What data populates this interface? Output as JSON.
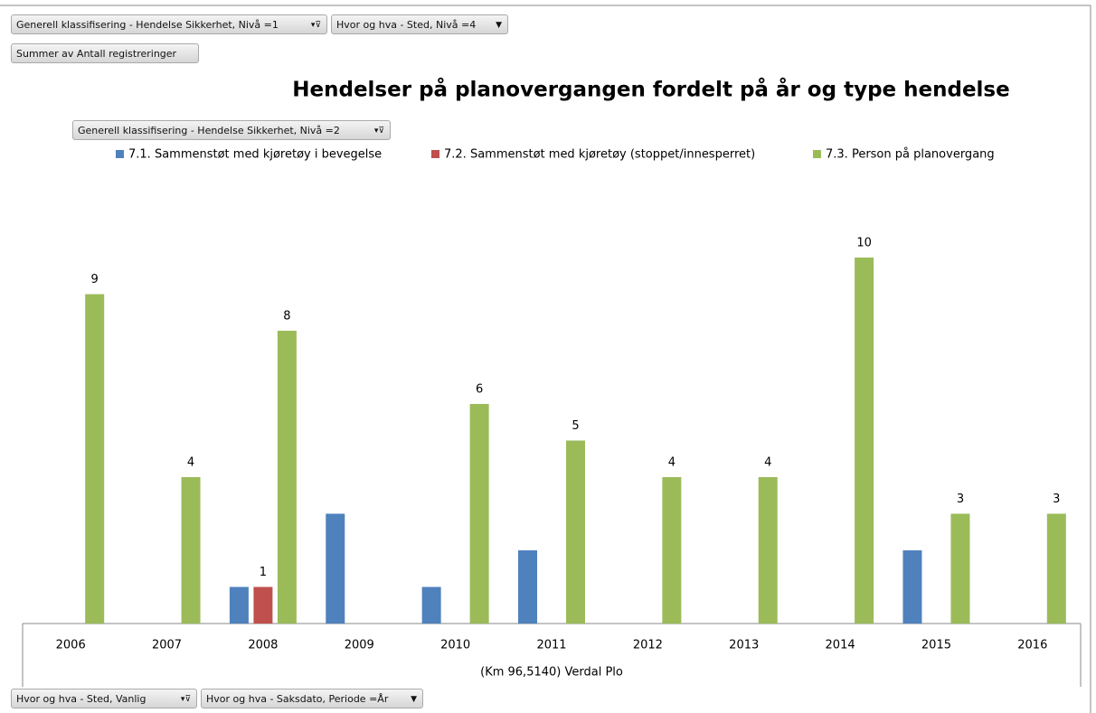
{
  "field_buttons": {
    "report_filter_1": "Generell klassifisering - Hendelse Sikkerhet, Nivå =1",
    "report_filter_2": "Hvor og hva - Sted, Nivå =4",
    "values_field": "Summer av Antall registreringer",
    "legend_field": "Generell klassifisering - Hendelse Sikkerhet, Nivå =2",
    "axis_field_1": "Hvor og hva - Sted, Vanlig",
    "axis_field_2": "Hvor og hva - Saksdato, Periode =År"
  },
  "chart_data": {
    "type": "bar",
    "title": "Hendelser på planovergangen fordelt på år og type hendelse",
    "x_label": "(Km 96,5140) Verdal  Plo",
    "categories": [
      "2006",
      "2007",
      "2008",
      "2009",
      "2010",
      "2011",
      "2012",
      "2013",
      "2014",
      "2015",
      "2016"
    ],
    "series": [
      {
        "name": "7.1. Sammenstøt med kjøretøy i bevegelse",
        "color": "#4f81bd",
        "data_labels": false,
        "values": [
          null,
          null,
          1,
          3,
          1,
          2,
          null,
          null,
          null,
          2,
          null
        ]
      },
      {
        "name": "7.2. Sammenstøt med kjøretøy (stoppet/innesperret)",
        "color": "#c0504d",
        "data_labels": true,
        "values": [
          null,
          null,
          1,
          null,
          null,
          null,
          null,
          null,
          null,
          null,
          null
        ]
      },
      {
        "name": "7.3. Person på planovergang",
        "color": "#9bbb59",
        "data_labels": true,
        "values": [
          9,
          4,
          8,
          null,
          6,
          5,
          4,
          4,
          10,
          3,
          3
        ]
      }
    ],
    "ylim": [
      0,
      12
    ],
    "legend": "top"
  }
}
